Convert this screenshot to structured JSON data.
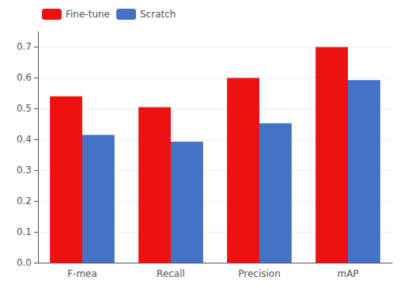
{
  "chart_data": {
    "type": "bar",
    "categories": [
      "F-mea",
      "Recall",
      "Precision",
      "mAP"
    ],
    "series": [
      {
        "name": "Fine-tune",
        "color": "#ee1111",
        "values": [
          0.54,
          0.505,
          0.6,
          0.7
        ]
      },
      {
        "name": "Scratch",
        "color": "#4472c4",
        "values": [
          0.415,
          0.393,
          0.453,
          0.593
        ]
      }
    ],
    "ylim": [
      0.0,
      0.75
    ],
    "yticks": [
      {
        "value": 0,
        "label": "0.0"
      },
      0.1,
      0.2,
      0.3,
      0.4,
      0.5,
      0.6,
      0.7
    ],
    "grid": true,
    "legend": "upper left"
  }
}
